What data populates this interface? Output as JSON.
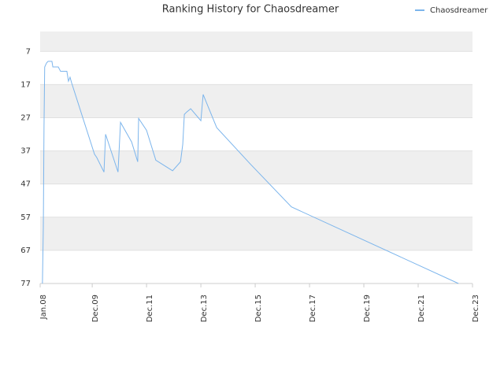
{
  "chart_data": {
    "type": "line",
    "title": "Ranking History for Chaosdreamer",
    "x": [
      1,
      1.4,
      1.7,
      2,
      2.8,
      3.5,
      5.2,
      5.6,
      8,
      9,
      11.8,
      12.5,
      13.2,
      13.9,
      24,
      25,
      28.2,
      28.9,
      34.4,
      35.5,
      40.4,
      43.1,
      43.5,
      47,
      51.1,
      58.5,
      62,
      63,
      63.7,
      64.7,
      66.5,
      71,
      72,
      78,
      92.9,
      111,
      184.8
    ],
    "series": [
      {
        "name": "Chaosdreamer",
        "color": "#7cb5ec",
        "values": [
          77,
          60,
          29.6,
          11.7,
          10.5,
          10,
          10,
          11.7,
          11.7,
          13,
          13,
          16,
          14.8,
          16.5,
          38,
          39,
          43.4,
          32,
          43.4,
          28.4,
          34.3,
          40.3,
          27.2,
          30.8,
          39.8,
          43,
          40.3,
          35,
          26,
          25.3,
          24.3,
          27.9,
          20,
          30,
          41,
          53.9,
          77
        ]
      }
    ],
    "xlim": [
      0,
      191
    ],
    "xticks": [
      {
        "value": 0,
        "label": "Jan.08"
      },
      {
        "value": 23,
        "label": "Dec.09"
      },
      {
        "value": 47,
        "label": "Dec.11"
      },
      {
        "value": 71,
        "label": "Dec.13"
      },
      {
        "value": 95,
        "label": "Dec.15"
      },
      {
        "value": 119,
        "label": "Dec.17"
      },
      {
        "value": 143,
        "label": "Dec.19"
      },
      {
        "value": 167,
        "label": "Dec.21"
      },
      {
        "value": 191,
        "label": "Dec.23"
      }
    ],
    "ylim": [
      77,
      1
    ],
    "yticks": [
      7,
      17,
      27,
      37,
      47,
      57,
      67,
      77
    ],
    "legend": "upper right",
    "banded": true
  }
}
